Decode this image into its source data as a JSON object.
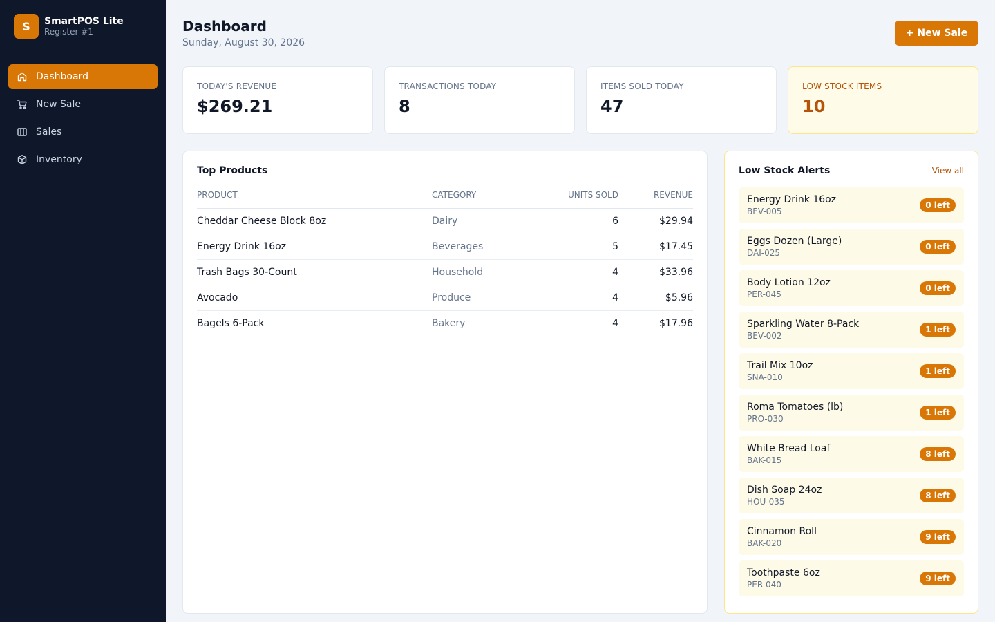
{
  "brand": {
    "logo_letter": "S",
    "name": "SmartPOS Lite",
    "register": "Register #1"
  },
  "nav": {
    "items": [
      {
        "label": "Dashboard",
        "icon": "home-icon",
        "active": true
      },
      {
        "label": "New Sale",
        "icon": "cart-icon"
      },
      {
        "label": "Sales",
        "icon": "columns-icon"
      },
      {
        "label": "Inventory",
        "icon": "box-icon"
      }
    ]
  },
  "header": {
    "title": "Dashboard",
    "date": "Sunday, August 30, 2026",
    "new_sale_label": "+ New Sale"
  },
  "stats": [
    {
      "label": "TODAY'S REVENUE",
      "value": "$269.21"
    },
    {
      "label": "TRANSACTIONS TODAY",
      "value": "8"
    },
    {
      "label": "ITEMS SOLD TODAY",
      "value": "47"
    },
    {
      "label": "LOW STOCK ITEMS",
      "value": "10"
    }
  ],
  "top_products": {
    "title": "Top Products",
    "columns": {
      "product": "PRODUCT",
      "category": "CATEGORY",
      "units": "UNITS SOLD",
      "revenue": "REVENUE"
    },
    "rows": [
      {
        "product": "Cheddar Cheese Block 8oz",
        "category": "Dairy",
        "units": "6",
        "revenue": "$29.94"
      },
      {
        "product": "Energy Drink 16oz",
        "category": "Beverages",
        "units": "5",
        "revenue": "$17.45"
      },
      {
        "product": "Trash Bags 30-Count",
        "category": "Household",
        "units": "4",
        "revenue": "$33.96"
      },
      {
        "product": "Avocado",
        "category": "Produce",
        "units": "4",
        "revenue": "$5.96"
      },
      {
        "product": "Bagels 6-Pack",
        "category": "Bakery",
        "units": "4",
        "revenue": "$17.96"
      }
    ]
  },
  "low_stock": {
    "title": "Low Stock Alerts",
    "view_all": "View all",
    "items": [
      {
        "name": "Energy Drink 16oz",
        "sku": "BEV-005",
        "badge": "0 left"
      },
      {
        "name": "Eggs Dozen (Large)",
        "sku": "DAI-025",
        "badge": "0 left"
      },
      {
        "name": "Body Lotion 12oz",
        "sku": "PER-045",
        "badge": "0 left"
      },
      {
        "name": "Sparkling Water 8-Pack",
        "sku": "BEV-002",
        "badge": "1 left"
      },
      {
        "name": "Trail Mix 10oz",
        "sku": "SNA-010",
        "badge": "1 left"
      },
      {
        "name": "Roma Tomatoes (lb)",
        "sku": "PRO-030",
        "badge": "1 left"
      },
      {
        "name": "White Bread Loaf",
        "sku": "BAK-015",
        "badge": "8 left"
      },
      {
        "name": "Dish Soap 24oz",
        "sku": "HOU-035",
        "badge": "8 left"
      },
      {
        "name": "Cinnamon Roll",
        "sku": "BAK-020",
        "badge": "9 left"
      },
      {
        "name": "Toothpaste 6oz",
        "sku": "PER-040",
        "badge": "9 left"
      }
    ]
  },
  "colors": {
    "accent": "#d97706",
    "sidebar_bg": "#0f172a",
    "page_bg": "#f1f4f9",
    "warn_bg": "#fefce8",
    "warn_text": "#b45309"
  }
}
